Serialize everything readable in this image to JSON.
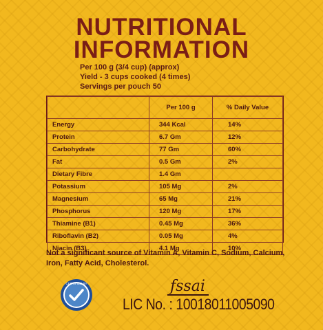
{
  "title": {
    "line1": "NUTRITIONAL",
    "line2": "INFORMATION"
  },
  "meta": {
    "per": "Per 100 g (3/4 cup) (approx)",
    "yield": "Yield - 3 cups cooked (4 times)",
    "servings": "Servings per pouch 50"
  },
  "table": {
    "headers": [
      "",
      "Per 100 g",
      "% Daily Value"
    ],
    "rows": [
      {
        "name": "Energy",
        "value": "344 Kcal",
        "dv": "14%"
      },
      {
        "name": "Protein",
        "value": "6.7 Gm",
        "dv": "12%"
      },
      {
        "name": "Carbohydrate",
        "value": "77 Gm",
        "dv": "60%"
      },
      {
        "name": "Fat",
        "value": "0.5 Gm",
        "dv": "2%"
      },
      {
        "name": "Dietary Fibre",
        "value": "1.4 Gm",
        "dv": ""
      },
      {
        "name": "Potassium",
        "value": "105 Mg",
        "dv": "2%"
      },
      {
        "name": "Magnesium",
        "value": "65 Mg",
        "dv": "21%"
      },
      {
        "name": "Phosphorus",
        "value": "120 Mg",
        "dv": "17%"
      },
      {
        "name": "Thiamine (B1)",
        "value": "0.45 Mg",
        "dv": "36%"
      },
      {
        "name": "Riboflavin (B2)",
        "value": "0.05 Mg",
        "dv": "4%"
      },
      {
        "name": "Niacin (B3)",
        "value": "4.1 Mg",
        "dv": "10%"
      }
    ]
  },
  "note": "Not a significant source of Vitamin A, Vitamin C, Sodium, Calcium, Iron, Fatty Acid, Cholesterol.",
  "cert": {
    "text": "CERTIFIED BY",
    "icon": "certification-seal-icon"
  },
  "fssai": {
    "logo": "fssai",
    "license": "LIC No. : 10018011005090"
  },
  "colors": {
    "background": "#f2b81e",
    "title": "#7a1e16",
    "text": "#4a1510"
  }
}
